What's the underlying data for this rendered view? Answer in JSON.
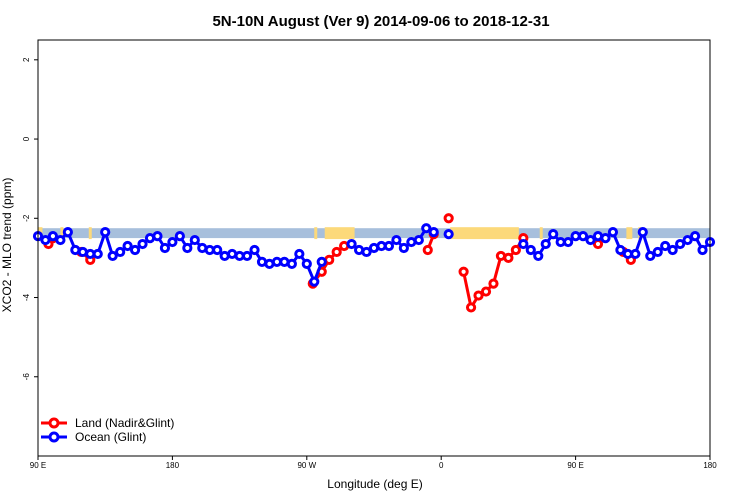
{
  "chart_data": {
    "type": "line",
    "title": "5N-10N August (Ver 9)   2014-09-06 to 2018-12-31",
    "xlabel": "Longitude (deg E)",
    "ylabel": "XCO2 - MLO trend (ppm)",
    "ylim": [
      -8,
      2.5
    ],
    "yticks": [
      2,
      0,
      -2,
      -4,
      -6
    ],
    "yticklabels": [
      "2",
      "0",
      "-2",
      "-4",
      "-6"
    ],
    "xticks": [
      0,
      90,
      180,
      270,
      360,
      450
    ],
    "xticklabels": [
      "90 E",
      "180",
      "90 W",
      "0",
      "90 E",
      "180"
    ],
    "x_unit_note": "degrees east of 90E",
    "land_mask": [
      {
        "x0": 0,
        "x1": 3
      },
      {
        "x0": 15,
        "x1": 17
      },
      {
        "x0": 34,
        "x1": 36
      },
      {
        "x0": 185,
        "x1": 187
      },
      {
        "x0": 192,
        "x1": 212
      },
      {
        "x0": 276,
        "x1": 322
      },
      {
        "x0": 336,
        "x1": 338
      },
      {
        "x0": 394,
        "x1": 398
      },
      {
        "x0": 402,
        "x1": 404
      }
    ],
    "band": {
      "y_low": -2.5,
      "y_high": -2.25
    },
    "series": [
      {
        "name": "Land (Nadir&Glint)",
        "color": "#ff0000",
        "segments": [
          {
            "x": [
              7,
              10
            ],
            "y": [
              -2.65,
              -2.5
            ]
          },
          {
            "x": [
              29,
              35
            ],
            "y": [
              -2.85,
              -3.05
            ]
          },
          {
            "x": [
              184,
              190,
              195,
              200,
              205
            ],
            "y": [
              -3.65,
              -3.35,
              -3.05,
              -2.85,
              -2.7
            ]
          },
          {
            "x": [
              261,
              265
            ],
            "y": [
              -2.8,
              -2.4
            ]
          },
          {
            "x": [
              275
            ],
            "y": [
              -2.0
            ]
          },
          {
            "x": [
              285,
              290,
              295,
              300,
              305,
              310,
              315,
              320,
              325
            ],
            "y": [
              -3.35,
              -4.25,
              -3.95,
              -3.85,
              -3.65,
              -2.95,
              -3.0,
              -2.8,
              -2.5
            ]
          },
          {
            "x": [
              375
            ],
            "y": [
              -2.65
            ]
          },
          {
            "x": [
              392,
              397
            ],
            "y": [
              -2.85,
              -3.05
            ]
          }
        ]
      },
      {
        "name": "Ocean (Glint)",
        "color": "#0000ff",
        "segments": [
          {
            "x": [
              0,
              5,
              10,
              15,
              20,
              25,
              30,
              35,
              40,
              45,
              50,
              55,
              60,
              65,
              70,
              75,
              80,
              85,
              90,
              95,
              100,
              105,
              110,
              115,
              120,
              125,
              130,
              135,
              140,
              145,
              150,
              155,
              160,
              165,
              170,
              175,
              180,
              185,
              190
            ],
            "y": [
              -2.45,
              -2.55,
              -2.45,
              -2.55,
              -2.35,
              -2.8,
              -2.85,
              -2.9,
              -2.9,
              -2.35,
              -2.95,
              -2.85,
              -2.7,
              -2.8,
              -2.65,
              -2.5,
              -2.45,
              -2.75,
              -2.6,
              -2.45,
              -2.75,
              -2.55,
              -2.75,
              -2.8,
              -2.8,
              -2.95,
              -2.9,
              -2.95,
              -2.95,
              -2.8,
              -3.1,
              -3.15,
              -3.1,
              -3.1,
              -3.15,
              -2.9,
              -3.15,
              -3.6,
              -3.1
            ]
          },
          {
            "x": [
              210,
              215,
              220,
              225,
              230,
              235,
              240,
              245,
              250,
              255,
              260,
              265
            ],
            "y": [
              -2.65,
              -2.8,
              -2.85,
              -2.75,
              -2.7,
              -2.7,
              -2.55,
              -2.75,
              -2.6,
              -2.55,
              -2.25,
              -2.35
            ]
          },
          {
            "x": [
              275
            ],
            "y": [
              -2.4
            ]
          },
          {
            "x": [
              325,
              330,
              335,
              340,
              345,
              350,
              355,
              360,
              365,
              370,
              375,
              380,
              385,
              390,
              395,
              400,
              405,
              410,
              415,
              420,
              425,
              430,
              435,
              440,
              445,
              450
            ],
            "y": [
              -2.65,
              -2.8,
              -2.95,
              -2.65,
              -2.4,
              -2.6,
              -2.6,
              -2.45,
              -2.45,
              -2.55,
              -2.45,
              -2.5,
              -2.35,
              -2.8,
              -2.9,
              -2.9,
              -2.35,
              -2.95,
              -2.85,
              -2.7,
              -2.8,
              -2.65,
              -2.55,
              -2.45,
              -2.8,
              -2.6
            ]
          }
        ]
      }
    ],
    "legend_position": "bottom-left",
    "grid": false
  }
}
